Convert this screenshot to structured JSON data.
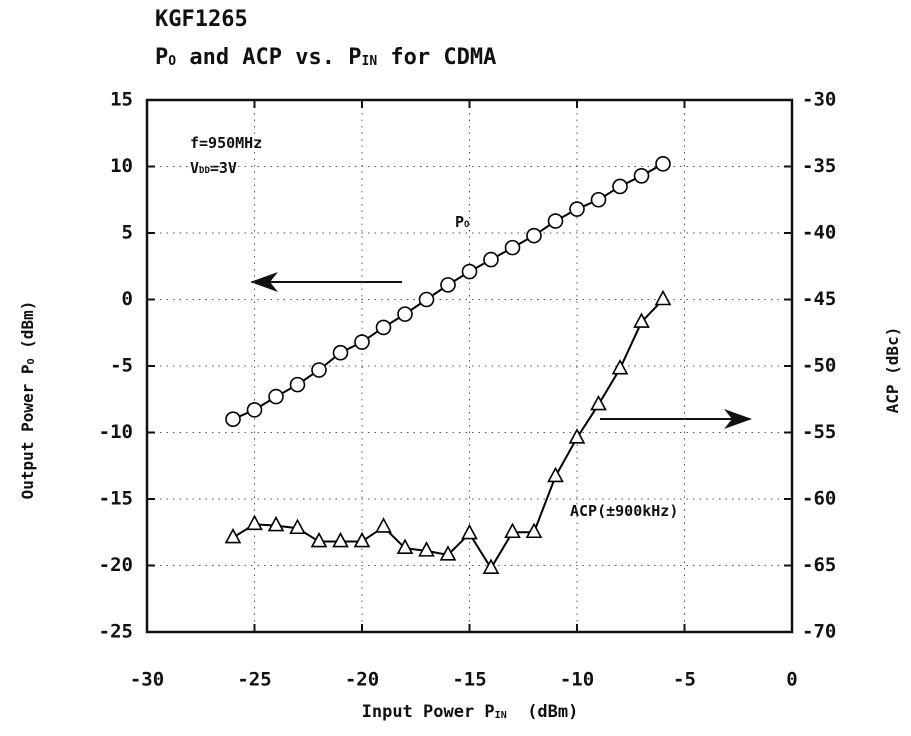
{
  "chart_data": {
    "type": "line",
    "title": "KGF1265",
    "subtitle": [
      {
        "text": "P"
      },
      {
        "text": "O",
        "sub": true
      },
      {
        "text": " and ACP vs. P"
      },
      {
        "text": "IN",
        "sub": true
      },
      {
        "text": " for CDMA"
      }
    ],
    "xlabel": [
      {
        "text": "Input Power P"
      },
      {
        "text": "IN",
        "sub": true
      },
      {
        "text": "  (dBm)"
      }
    ],
    "ylabel": [
      {
        "text": "Output Power P"
      },
      {
        "text": "O",
        "sub": true
      },
      {
        "text": " (dBm)"
      }
    ],
    "y2label": [
      {
        "text": "ACP (dBc)"
      }
    ],
    "annotations": [
      [
        {
          "text": "f=950MHz"
        }
      ],
      [
        {
          "text": "V"
        },
        {
          "text": "DD",
          "sub": true
        },
        {
          "text": "=3V"
        }
      ],
      [
        {
          "text": "P"
        },
        {
          "text": "O",
          "sub": true
        }
      ],
      [
        {
          "text": "ACP(±900kHz)"
        }
      ]
    ],
    "x": [
      -26,
      -25,
      -24,
      -23,
      -22,
      -21,
      -20,
      -19,
      -18,
      -17,
      -16,
      -15,
      -14,
      -13,
      -12,
      -11,
      -10,
      -9,
      -8,
      -7,
      -6
    ],
    "series": [
      {
        "name": "PO",
        "color": "#000000",
        "marker": "circle",
        "axis": "y",
        "values": [
          -9,
          -8.3,
          -7.3,
          -6.4,
          -5.3,
          -4,
          -3.2,
          -2.1,
          -1.1,
          0,
          1.1,
          2.1,
          3,
          3.9,
          4.8,
          5.9,
          6.8,
          7.5,
          8.5,
          9.3,
          10.2
        ]
      },
      {
        "name": "ACP",
        "color": "#000000",
        "marker": "triangle",
        "axis": "y2",
        "values": [
          -62.9,
          -61.9,
          -62,
          -62.2,
          -63.2,
          -63.2,
          -63.2,
          -62.1,
          -63.7,
          -63.9,
          -64.2,
          -62.6,
          -65.2,
          -62.5,
          -62.5,
          -58.3,
          -55.4,
          -52.9,
          -50.2,
          -46.7,
          -45
        ]
      }
    ],
    "xlim": [
      -30,
      0
    ],
    "xticks": [
      -30,
      -25,
      -20,
      -15,
      -10,
      -5,
      0
    ],
    "ylim": [
      -25,
      15
    ],
    "yticks": [
      -25,
      -20,
      -15,
      -10,
      -5,
      0,
      5,
      10,
      15
    ],
    "y2lim": [
      -70,
      -30
    ],
    "y2ticks": [
      -70,
      -65,
      -60,
      -55,
      -50,
      -45,
      -40,
      -35,
      -30
    ],
    "grid": true
  }
}
